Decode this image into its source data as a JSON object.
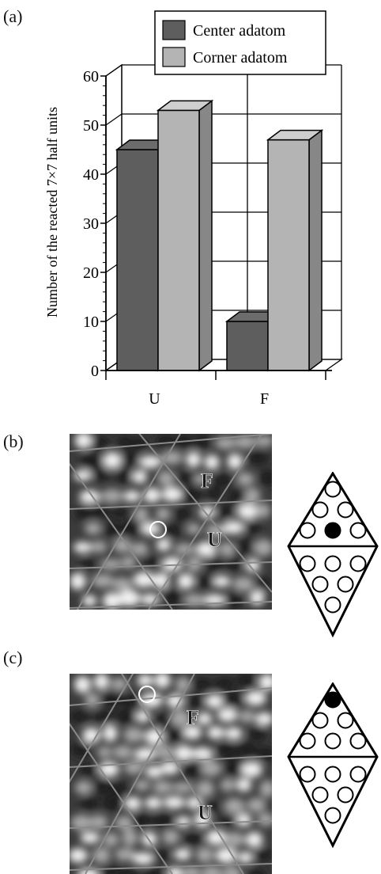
{
  "panels": {
    "a": {
      "label": "(a)"
    },
    "b": {
      "label": "(b)",
      "upper_mark": "F",
      "lower_mark": "U",
      "diagram_marked_position": "center"
    },
    "c": {
      "label": "(c)",
      "upper_mark": "F",
      "lower_mark": "U",
      "diagram_marked_position": "corner"
    }
  },
  "colors": {
    "center_series": "#5e5e5e",
    "corner_series": "#b4b4b4",
    "grid": "#000000",
    "stm_lines": "#8a8a8a",
    "marker_filled": "#000000"
  },
  "chart_data": {
    "type": "bar",
    "categories": [
      "U",
      "F"
    ],
    "series": [
      {
        "name": "Center adatom",
        "values": [
          45,
          10
        ]
      },
      {
        "name": "Corner adatom",
        "values": [
          53,
          47
        ]
      }
    ],
    "ylabel": "Number of the reacted 7×7 half units",
    "xlabel": "",
    "ylim": [
      0,
      60
    ],
    "yticks": [
      0,
      10,
      20,
      30,
      40,
      50,
      60
    ],
    "grid": true,
    "legend_position": "top-right",
    "style": "3d"
  }
}
